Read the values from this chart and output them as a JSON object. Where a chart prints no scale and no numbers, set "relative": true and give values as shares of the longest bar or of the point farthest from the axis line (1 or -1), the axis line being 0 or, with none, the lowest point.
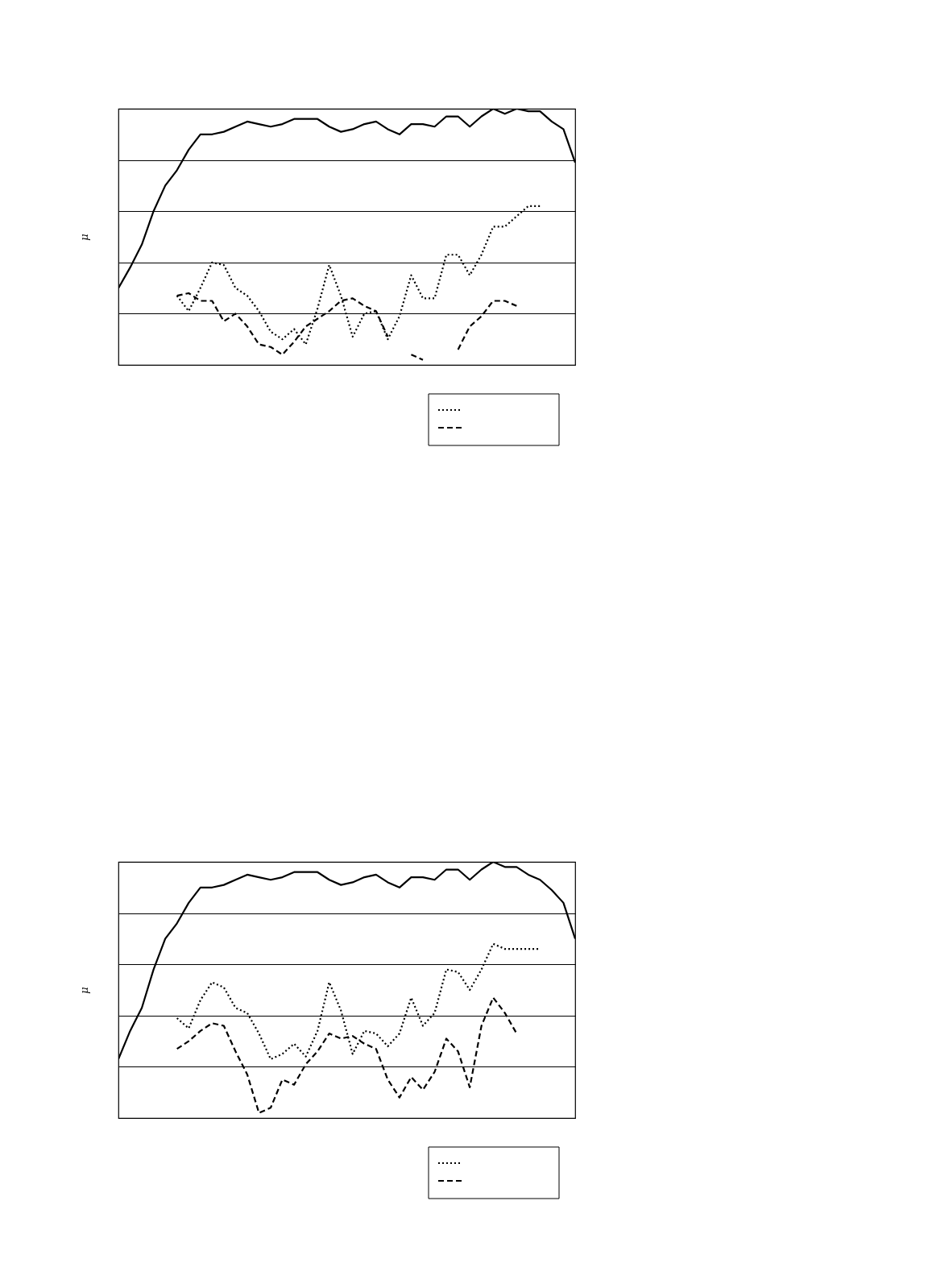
{
  "chart_data": [
    {
      "type": "line",
      "ylabel": "μ",
      "relative": true,
      "grid": "y",
      "categories": [
        null,
        null,
        null,
        null,
        null,
        null,
        null,
        null,
        null,
        null,
        null,
        null,
        null,
        null,
        null,
        null,
        null,
        null,
        null,
        null,
        null,
        null,
        null,
        null,
        null,
        null,
        null,
        null,
        null,
        null,
        null,
        null,
        null,
        null,
        null,
        null,
        null,
        null,
        null,
        null
      ],
      "series": [
        {
          "color": "#000000",
          "line_style": "solid",
          "values": [
            0.3,
            0.38,
            0.47,
            0.6,
            0.7,
            0.76,
            0.84,
            0.9,
            0.9,
            0.91,
            0.93,
            0.95,
            0.94,
            0.93,
            0.94,
            0.96,
            0.96,
            0.96,
            0.93,
            0.91,
            0.92,
            0.94,
            0.95,
            0.92,
            0.9,
            0.94,
            0.94,
            0.93,
            0.97,
            0.97,
            0.93,
            0.97,
            1,
            0.98,
            1,
            0.99,
            0.99,
            0.95,
            0.92,
            0.79
          ]
        },
        {
          "color": "#000000",
          "line_style": "dotted",
          "values": [
            null,
            null,
            null,
            null,
            null,
            0.27,
            0.21,
            0.3,
            0.4,
            0.39,
            0.3,
            0.27,
            0.21,
            0.13,
            0.1,
            0.14,
            0.08,
            0.22,
            0.39,
            0.27,
            0.11,
            0.2,
            0.21,
            0.1,
            0.19,
            0.35,
            0.26,
            0.26,
            0.43,
            0.43,
            0.35,
            0.43,
            0.54,
            0.54,
            0.58,
            0.62,
            0.62,
            null,
            null,
            null
          ]
        },
        {
          "color": "#000000",
          "line_style": "dashed",
          "values": [
            null,
            null,
            null,
            null,
            null,
            0.27,
            0.28,
            0.25,
            0.25,
            0.17,
            0.2,
            0.15,
            0.08,
            0.07,
            0.04,
            0.09,
            0.15,
            0.18,
            0.21,
            0.25,
            0.26,
            0.23,
            0.21,
            0.11,
            null,
            0.04,
            0.02,
            null,
            null,
            0.06,
            0.15,
            0.19,
            0.25,
            0.25,
            0.23,
            null,
            null,
            null,
            null,
            null
          ]
        }
      ]
    },
    {
      "type": "line",
      "ylabel": "μ",
      "relative": true,
      "grid": "y",
      "categories": [
        null,
        null,
        null,
        null,
        null,
        null,
        null,
        null,
        null,
        null,
        null,
        null,
        null,
        null,
        null,
        null,
        null,
        null,
        null,
        null,
        null,
        null,
        null,
        null,
        null,
        null,
        null,
        null,
        null,
        null,
        null,
        null,
        null,
        null,
        null,
        null,
        null,
        null,
        null,
        null
      ],
      "series": [
        {
          "color": "#000000",
          "line_style": "solid",
          "values": [
            0.23,
            0.34,
            0.43,
            0.58,
            0.7,
            0.76,
            0.84,
            0.9,
            0.9,
            0.91,
            0.93,
            0.95,
            0.94,
            0.93,
            0.94,
            0.96,
            0.96,
            0.96,
            0.93,
            0.91,
            0.92,
            0.94,
            0.95,
            0.92,
            0.9,
            0.94,
            0.94,
            0.93,
            0.97,
            0.97,
            0.93,
            0.97,
            1,
            0.98,
            0.98,
            0.95,
            0.93,
            0.89,
            0.84,
            0.7
          ]
        },
        {
          "color": "#000000",
          "line_style": "dotted",
          "values": [
            null,
            null,
            null,
            null,
            null,
            0.39,
            0.35,
            0.46,
            0.53,
            0.51,
            0.43,
            0.41,
            0.33,
            0.23,
            0.25,
            0.29,
            0.24,
            0.34,
            0.53,
            0.42,
            0.25,
            0.34,
            0.33,
            0.28,
            0.33,
            0.47,
            0.36,
            0.41,
            0.58,
            0.57,
            0.5,
            0.58,
            0.68,
            0.66,
            0.66,
            0.66,
            0.66,
            null,
            null,
            null
          ]
        },
        {
          "color": "#000000",
          "line_style": "dashed",
          "values": [
            null,
            null,
            null,
            null,
            null,
            0.27,
            0.3,
            0.34,
            0.37,
            0.36,
            0.26,
            0.17,
            0.02,
            0.04,
            0.15,
            0.13,
            0.21,
            0.26,
            0.33,
            0.31,
            0.32,
            0.29,
            0.27,
            0.15,
            0.08,
            0.16,
            0.11,
            0.18,
            0.31,
            0.26,
            0.12,
            0.36,
            0.47,
            0.41,
            0.33,
            null,
            null,
            null,
            null,
            null
          ]
        }
      ]
    }
  ]
}
